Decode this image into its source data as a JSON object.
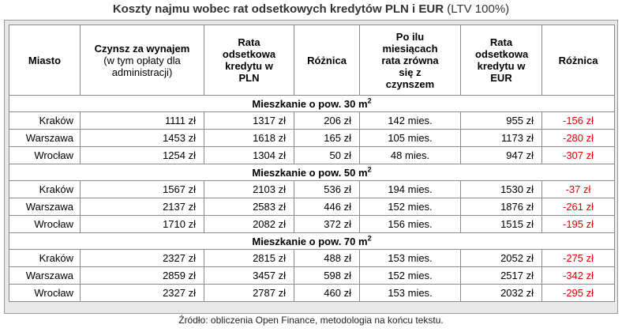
{
  "title": {
    "bold": "Koszty najmu wobec rat odsetkowych kredytów PLN i EUR",
    "normal": "(LTV 100%)"
  },
  "headers": {
    "city": "Miasto",
    "rent_main": "Czynsz za wynajem",
    "rent_sub": "(w tym opłaty dla administracji)",
    "rate_pln": "Rata odsetkowa kredytu w PLN",
    "diff_pln": "Różnica",
    "months": "Po ilu miesiącach rata zrówna się z czynszem",
    "rate_eur": "Rata odsetkowa kredytu w EUR",
    "diff_eur": "Różnica"
  },
  "sections": [
    {
      "label": "Mieszkanie o pow. 30 m",
      "sup": "2",
      "rows": [
        {
          "city": "Kraków",
          "rent": "1111 zł",
          "rate_pln": "1317 zł",
          "diff_pln": "206 zł",
          "months": "142 mies.",
          "rate_eur": "955 zł",
          "diff_eur": "-156 zł"
        },
        {
          "city": "Warszawa",
          "rent": "1453 zł",
          "rate_pln": "1618 zł",
          "diff_pln": "165 zł",
          "months": "105 mies.",
          "rate_eur": "1173 zł",
          "diff_eur": "-280 zł"
        },
        {
          "city": "Wrocław",
          "rent": "1254 zł",
          "rate_pln": "1304 zł",
          "diff_pln": "50 zł",
          "months": "48 mies.",
          "rate_eur": "947 zł",
          "diff_eur": "-307 zł"
        }
      ]
    },
    {
      "label": "Mieszkanie o pow. 50 m",
      "sup": "2",
      "rows": [
        {
          "city": "Kraków",
          "rent": "1567 zł",
          "rate_pln": "2103 zł",
          "diff_pln": "536 zł",
          "months": "194 mies.",
          "rate_eur": "1530 zł",
          "diff_eur": "-37 zł"
        },
        {
          "city": "Warszawa",
          "rent": "2137 zł",
          "rate_pln": "2583 zł",
          "diff_pln": "446 zł",
          "months": "152 mies.",
          "rate_eur": "1876 zł",
          "diff_eur": "-261 zł"
        },
        {
          "city": "Wrocław",
          "rent": "1710 zł",
          "rate_pln": "2082 zł",
          "diff_pln": "372 zł",
          "months": "156 mies.",
          "rate_eur": "1515 zł",
          "diff_eur": "-195 zł"
        }
      ]
    },
    {
      "label": "Mieszkanie o pow. 70 m",
      "sup": "2",
      "rows": [
        {
          "city": "Kraków",
          "rent": "2327 zł",
          "rate_pln": "2815 zł",
          "diff_pln": "488 zł",
          "months": "153 mies.",
          "rate_eur": "2052 zł",
          "diff_eur": "-275 zł"
        },
        {
          "city": "Warszawa",
          "rent": "2859 zł",
          "rate_pln": "3457 zł",
          "diff_pln": "598 zł",
          "months": "152 mies.",
          "rate_eur": "2517 zł",
          "diff_eur": "-342 zł"
        },
        {
          "city": "Wrocław",
          "rent": "2327 zł",
          "rate_pln": "2787 zł",
          "diff_pln": "460 zł",
          "months": "153 mies.",
          "rate_eur": "2032 zł",
          "diff_eur": "-295 zł"
        }
      ]
    }
  ],
  "source": "Źródło: obliczenia Open Finance, metodologia na końcu tekstu.",
  "colors": {
    "negative": "#e00000",
    "panel": "#e8e8e8",
    "border": "#8a8a8a"
  }
}
